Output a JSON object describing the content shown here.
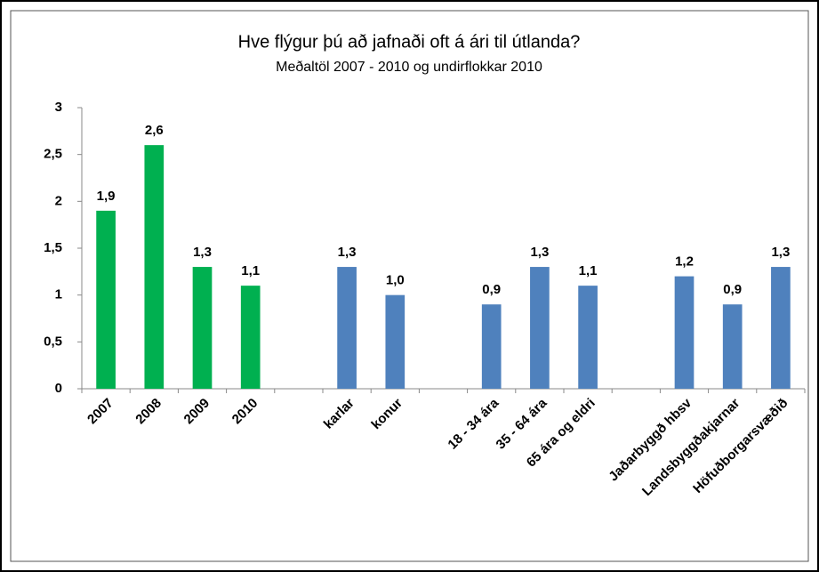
{
  "chart_data": {
    "type": "bar",
    "title": "Hve flýgur þú að jafnaði oft á ári til útlanda?",
    "subtitle": "Meðaltöl 2007 - 2010 og undirflokkar 2010",
    "categories": [
      "2007",
      "2008",
      "2009",
      "2010",
      null,
      "karlar",
      "konur",
      null,
      "18 - 34 ára",
      "35 - 64 ára",
      "65 ára og eldri",
      null,
      "Jaðarbyggð hbsv",
      "Landsbyggðakjarnar",
      "Höfuðborgarsvæðið"
    ],
    "values": [
      1.9,
      2.6,
      1.3,
      1.1,
      null,
      1.3,
      1.0,
      null,
      0.9,
      1.3,
      1.1,
      null,
      1.2,
      0.9,
      1.3
    ],
    "value_labels": [
      "1,9",
      "2,6",
      "1,3",
      "1,1",
      null,
      "1,3",
      "1,0",
      null,
      "0,9",
      "1,3",
      "1,1",
      null,
      "1,2",
      "0,9",
      "1,3"
    ],
    "colors": [
      "#00b050",
      "#00b050",
      "#00b050",
      "#00b050",
      null,
      "#4f81bd",
      "#4f81bd",
      null,
      "#4f81bd",
      "#4f81bd",
      "#4f81bd",
      null,
      "#4f81bd",
      "#4f81bd",
      "#4f81bd"
    ],
    "ylim": [
      0,
      3
    ],
    "yticks": [
      0,
      {
        "value": 0.5,
        "label": "0,5"
      },
      1,
      {
        "value": 1.5,
        "label": "1,5"
      },
      2,
      {
        "value": 2.5,
        "label": "2,5"
      },
      3
    ],
    "grid": false
  }
}
